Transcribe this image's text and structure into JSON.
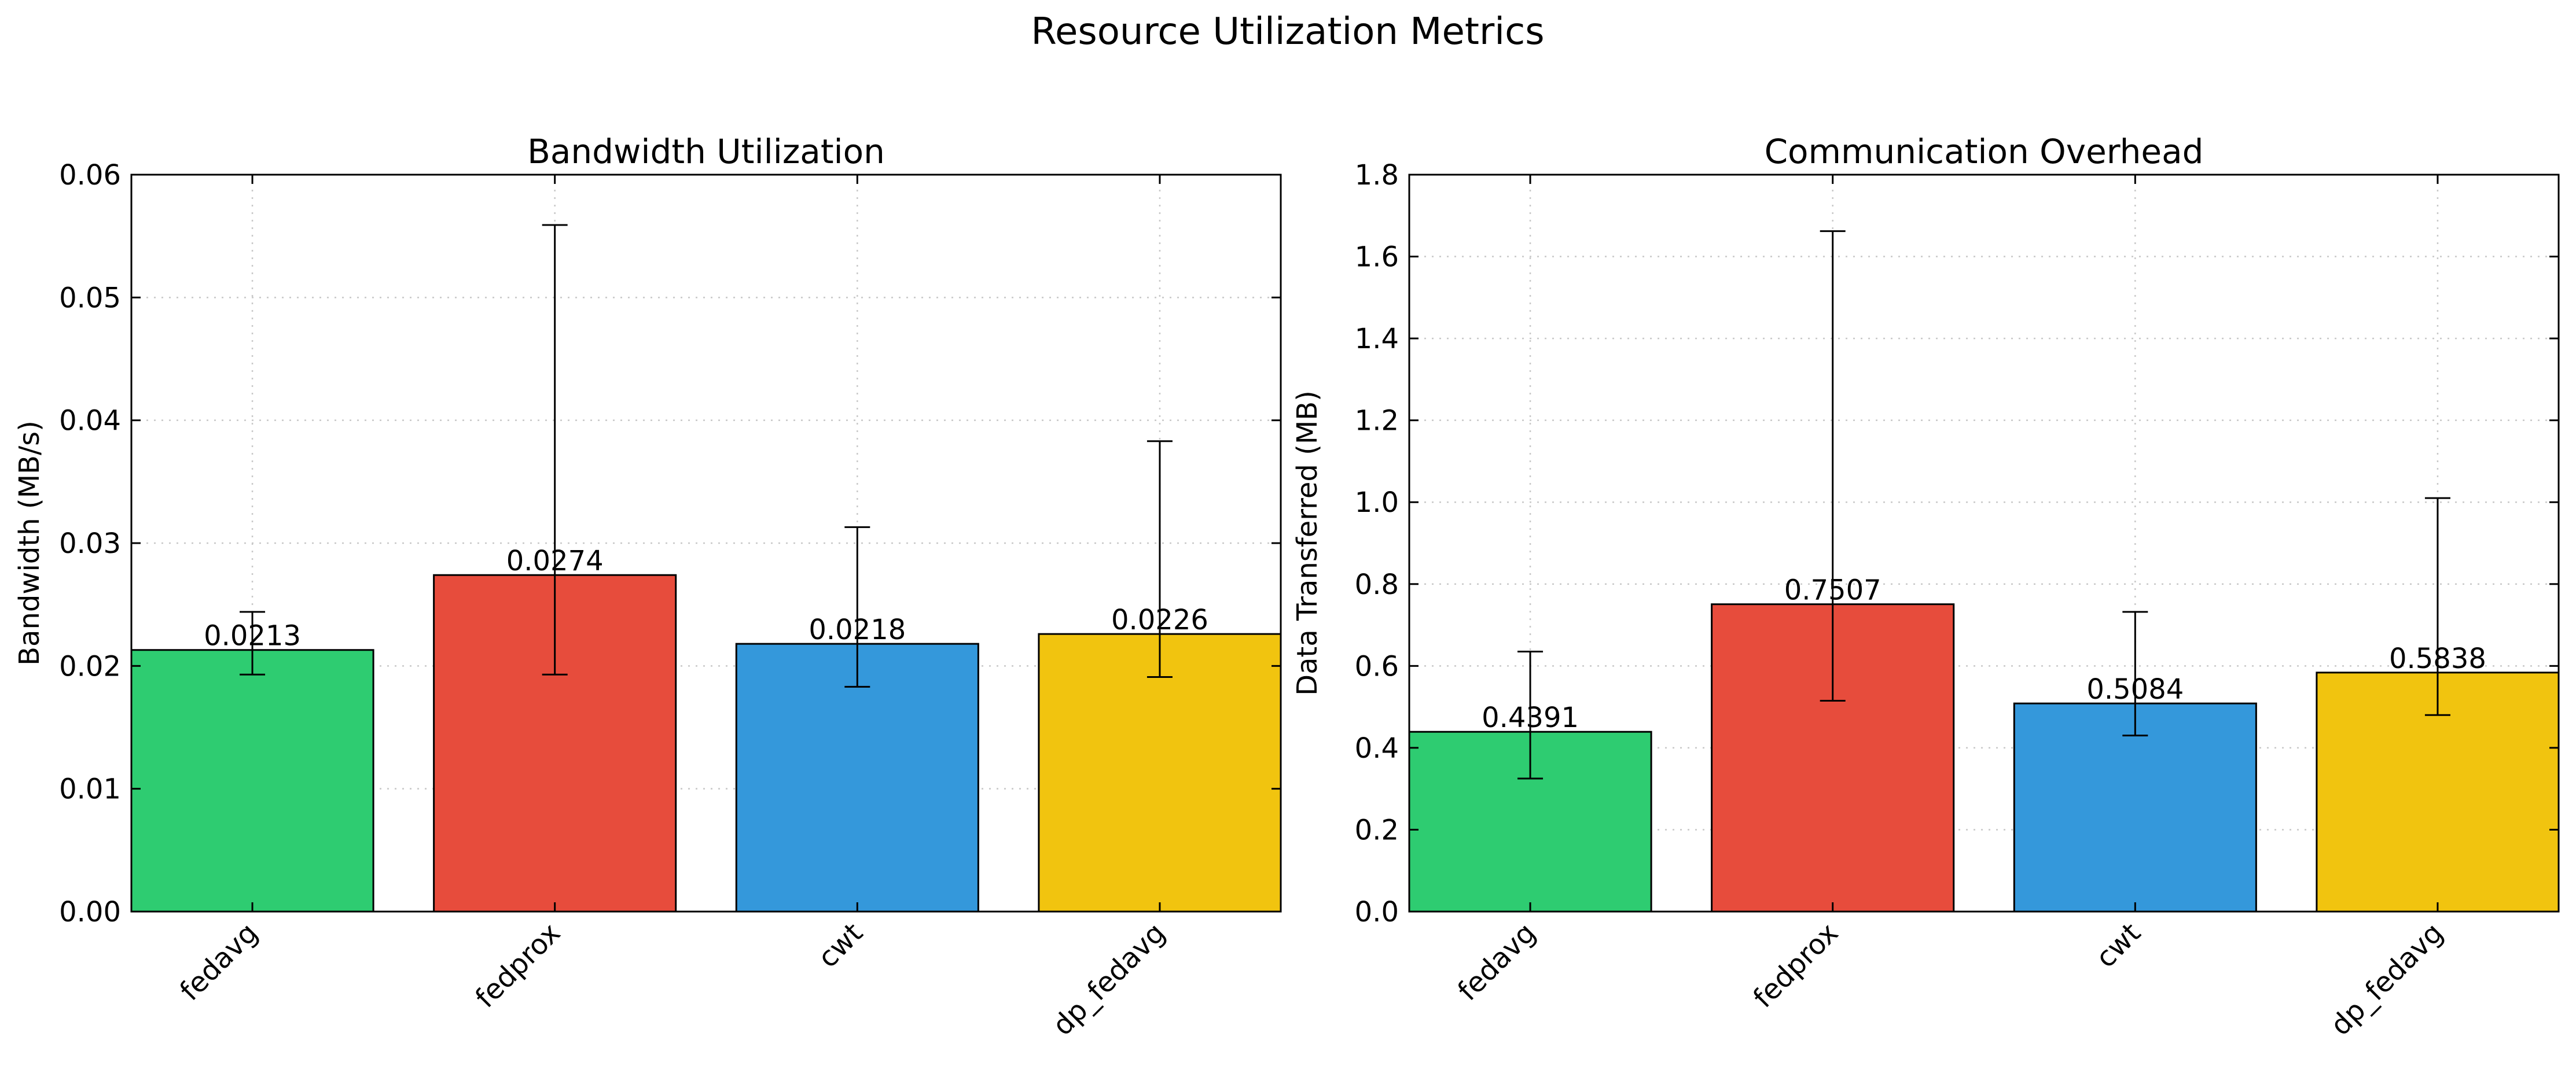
{
  "figure": {
    "title": "Resource Utilization Metrics"
  },
  "chart_data": [
    {
      "type": "bar",
      "title": "Bandwidth Utilization",
      "xlabel": "",
      "ylabel": "Bandwidth (MB/s)",
      "categories": [
        "fedavg",
        "fedprox",
        "cwt",
        "dp_fedavg"
      ],
      "values": [
        0.0213,
        0.0274,
        0.0218,
        0.0226
      ],
      "value_labels": [
        "0.0213",
        "0.0274",
        "0.0218",
        "0.0226"
      ],
      "error_low": [
        0.0193,
        0.0193,
        0.0183,
        0.0191
      ],
      "error_high": [
        0.0244,
        0.0559,
        0.0313,
        0.0383
      ],
      "colors": [
        "#2ecc71",
        "#e74c3c",
        "#3498db",
        "#f1c40f"
      ],
      "ylim": [
        0,
        0.06
      ],
      "yticks": [
        "0.00",
        "0.01",
        "0.02",
        "0.03",
        "0.04",
        "0.05",
        "0.06"
      ],
      "grid": true
    },
    {
      "type": "bar",
      "title": "Communication Overhead",
      "xlabel": "",
      "ylabel": "Data Transferred (MB)",
      "categories": [
        "fedavg",
        "fedprox",
        "cwt",
        "dp_fedavg"
      ],
      "values": [
        0.4391,
        0.7507,
        0.5084,
        0.5838
      ],
      "value_labels": [
        "0.4391",
        "0.7507",
        "0.5084",
        "0.5838"
      ],
      "error_low": [
        0.325,
        0.515,
        0.43,
        0.48
      ],
      "error_high": [
        0.635,
        1.662,
        0.732,
        1.01
      ],
      "colors": [
        "#2ecc71",
        "#e74c3c",
        "#3498db",
        "#f1c40f"
      ],
      "ylim": [
        0,
        1.8
      ],
      "yticks": [
        "0.0",
        "0.2",
        "0.4",
        "0.6",
        "0.8",
        "1.0",
        "1.2",
        "1.4",
        "1.6",
        "1.8"
      ],
      "grid": true
    }
  ]
}
